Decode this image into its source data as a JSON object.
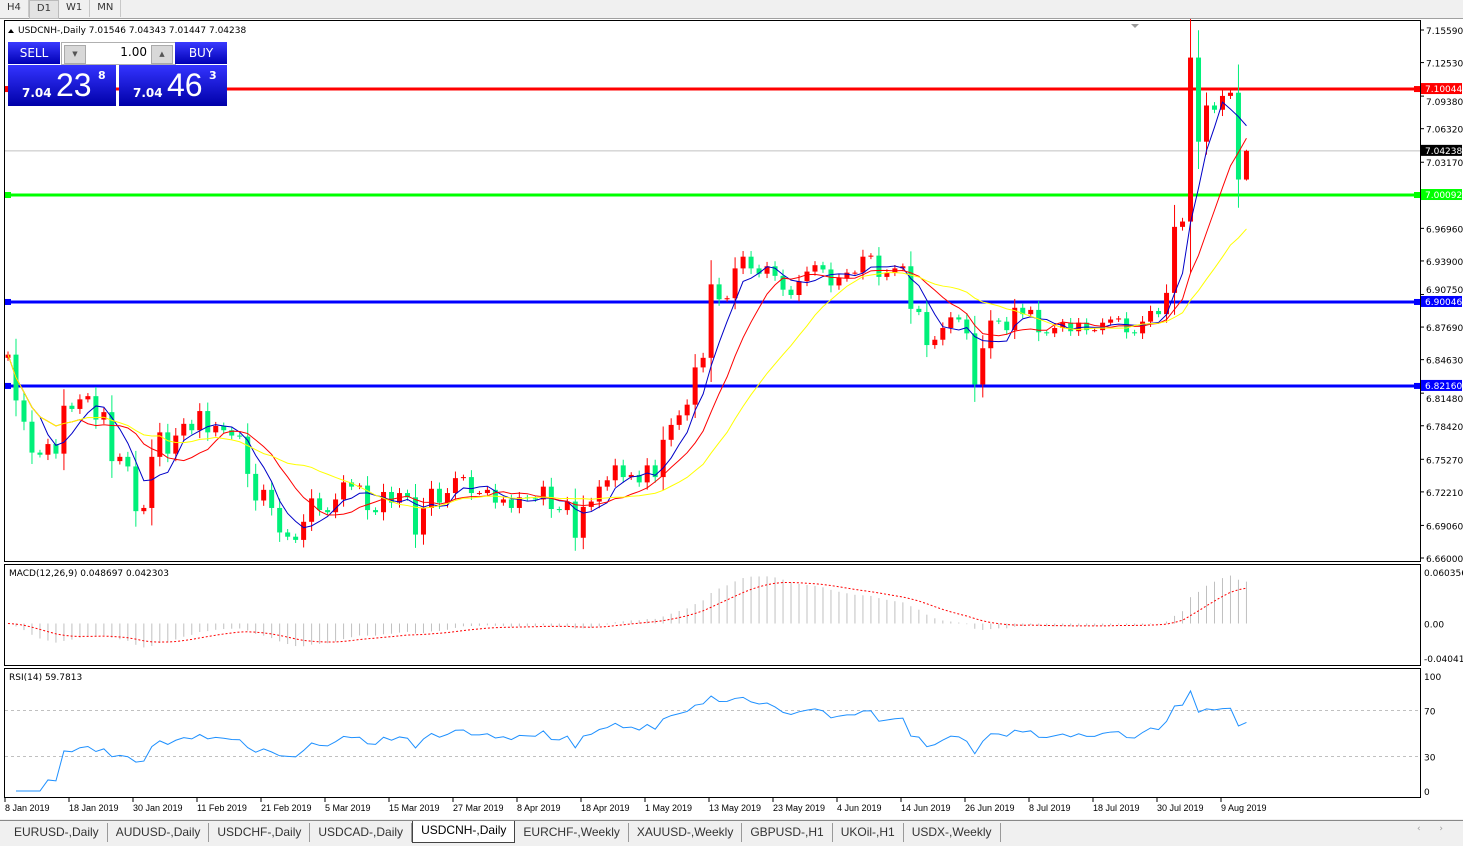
{
  "timeframes": [
    "H4",
    "D1",
    "W1",
    "MN"
  ],
  "active_timeframe": "D1",
  "chart": {
    "header": "USDCNH-,Daily  7.01546 7.04343 7.01447 7.04238",
    "symbol": "USDCNH-",
    "period": "Daily",
    "last": {
      "open": 7.01546,
      "high": 7.04343,
      "low": 7.01447,
      "close": 7.04238
    }
  },
  "trade_panel": {
    "sell_label": "SELL",
    "buy_label": "BUY",
    "lots": "1.00",
    "sell_price": {
      "prefix": "7.04",
      "big": "23",
      "sup": "8"
    },
    "buy_price": {
      "prefix": "7.04",
      "big": "46",
      "sup": "3"
    }
  },
  "colors": {
    "up_candle": "#ff0000",
    "down_candle": "#00f07a",
    "ma_fast": "#0000c8",
    "ma_mid": "#ff0000",
    "ma_slow": "#ffff00",
    "rsi_line": "#1e90ff",
    "macd_hist": "#c0c0c0",
    "macd_signal": "#ff0000"
  },
  "horizontal_lines": [
    {
      "price": 7.10044,
      "label": "7.10044",
      "color": "#ff0000"
    },
    {
      "price": 7.00092,
      "label": "7.00092",
      "color": "#00ff00"
    },
    {
      "price": 6.90046,
      "label": "6.90046",
      "color": "#0000ff"
    },
    {
      "price": 6.8216,
      "label": "6.82160",
      "color": "#0000ff"
    }
  ],
  "current_price_label": "7.04238",
  "chart_data": {
    "type": "candlestick",
    "ylim": [
      6.66,
      7.1559
    ],
    "price_ticks": [
      "7.15590",
      "7.12530",
      "7.09380",
      "7.06320",
      "7.03170",
      "6.96960",
      "6.93900",
      "6.90750",
      "6.87690",
      "6.84630",
      "6.81480",
      "6.78420",
      "6.75270",
      "6.72210",
      "6.69060",
      "6.66000"
    ],
    "date_labels": [
      "8 Jan 2019",
      "18 Jan 2019",
      "30 Jan 2019",
      "11 Feb 2019",
      "21 Feb 2019",
      "5 Mar 2019",
      "15 Mar 2019",
      "27 Mar 2019",
      "8 Apr 2019",
      "18 Apr 2019",
      "1 May 2019",
      "13 May 2019",
      "23 May 2019",
      "4 Jun 2019",
      "14 Jun 2019",
      "26 Jun 2019",
      "8 Jul 2019",
      "18 Jul 2019",
      "30 Jul 2019",
      "9 Aug 2019"
    ],
    "closes": [
      6.851,
      6.808,
      6.788,
      6.759,
      6.757,
      6.767,
      6.758,
      6.803,
      6.8,
      6.809,
      6.812,
      6.79,
      6.797,
      6.751,
      6.755,
      6.746,
      6.704,
      6.707,
      6.755,
      6.778,
      6.758,
      6.775,
      6.786,
      6.78,
      6.798,
      6.778,
      6.784,
      6.78,
      6.775,
      6.774,
      6.739,
      6.714,
      6.724,
      6.707,
      6.684,
      6.68,
      6.677,
      6.694,
      6.716,
      6.705,
      6.703,
      6.715,
      6.731,
      6.727,
      6.728,
      6.705,
      6.703,
      6.722,
      6.712,
      6.721,
      6.717,
      6.682,
      6.707,
      6.725,
      6.712,
      6.721,
      6.735,
      6.736,
      6.721,
      6.721,
      6.724,
      6.712,
      6.715,
      6.707,
      6.717,
      6.716,
      6.715,
      6.727,
      6.706,
      6.705,
      6.713,
      6.679,
      6.708,
      6.713,
      6.727,
      6.733,
      6.747,
      6.736,
      6.738,
      6.731,
      6.747,
      6.736,
      6.771,
      6.785,
      6.794,
      6.804,
      6.839,
      6.848,
      6.917,
      6.903,
      6.904,
      6.932,
      6.943,
      6.932,
      6.927,
      6.934,
      6.925,
      6.912,
      6.907,
      6.92,
      6.929,
      6.935,
      6.931,
      6.916,
      6.923,
      6.928,
      6.928,
      6.943,
      6.944,
      6.924,
      6.928,
      6.932,
      6.934,
      6.894,
      6.891,
      6.86,
      6.865,
      6.876,
      6.886,
      6.884,
      6.871,
      6.823,
      6.857,
      6.883,
      6.882,
      6.874,
      6.895,
      6.889,
      6.893,
      6.872,
      6.871,
      6.876,
      6.881,
      6.873,
      6.881,
      6.874,
      6.874,
      6.881,
      6.884,
      6.885,
      6.872,
      6.871,
      6.882,
      6.892,
      6.889,
      6.909,
      6.971,
      6.976,
      7.13,
      7.051,
      7.085,
      7.081,
      7.094,
      7.097,
      7.01546,
      7.04238
    ],
    "moving_averages": [
      "fast",
      "mid",
      "slow"
    ]
  },
  "macd": {
    "label": "MACD(12,26,9) 0.048697 0.042303",
    "ticks": [
      "0.060356",
      "0.00",
      "-0.040416"
    ],
    "ylim": [
      -0.040416,
      0.060356
    ]
  },
  "rsi": {
    "label": "RSI(14) 59.7813",
    "ticks": [
      "100",
      "70",
      "30",
      "0"
    ],
    "levels": [
      70,
      30
    ]
  },
  "symbol_tabs": [
    "EURUSD-,Daily",
    "AUDUSD-,Daily",
    "USDCHF-,Daily",
    "USDCAD-,Daily",
    "USDCNH-,Daily",
    "EURCHF-,Weekly",
    "XAUUSD-,Weekly",
    "GBPUSD-,H1",
    "UKOil-,H1",
    "USDX-,Weekly"
  ],
  "active_tab": "USDCNH-,Daily",
  "scroll_arrows": "‹ ›"
}
